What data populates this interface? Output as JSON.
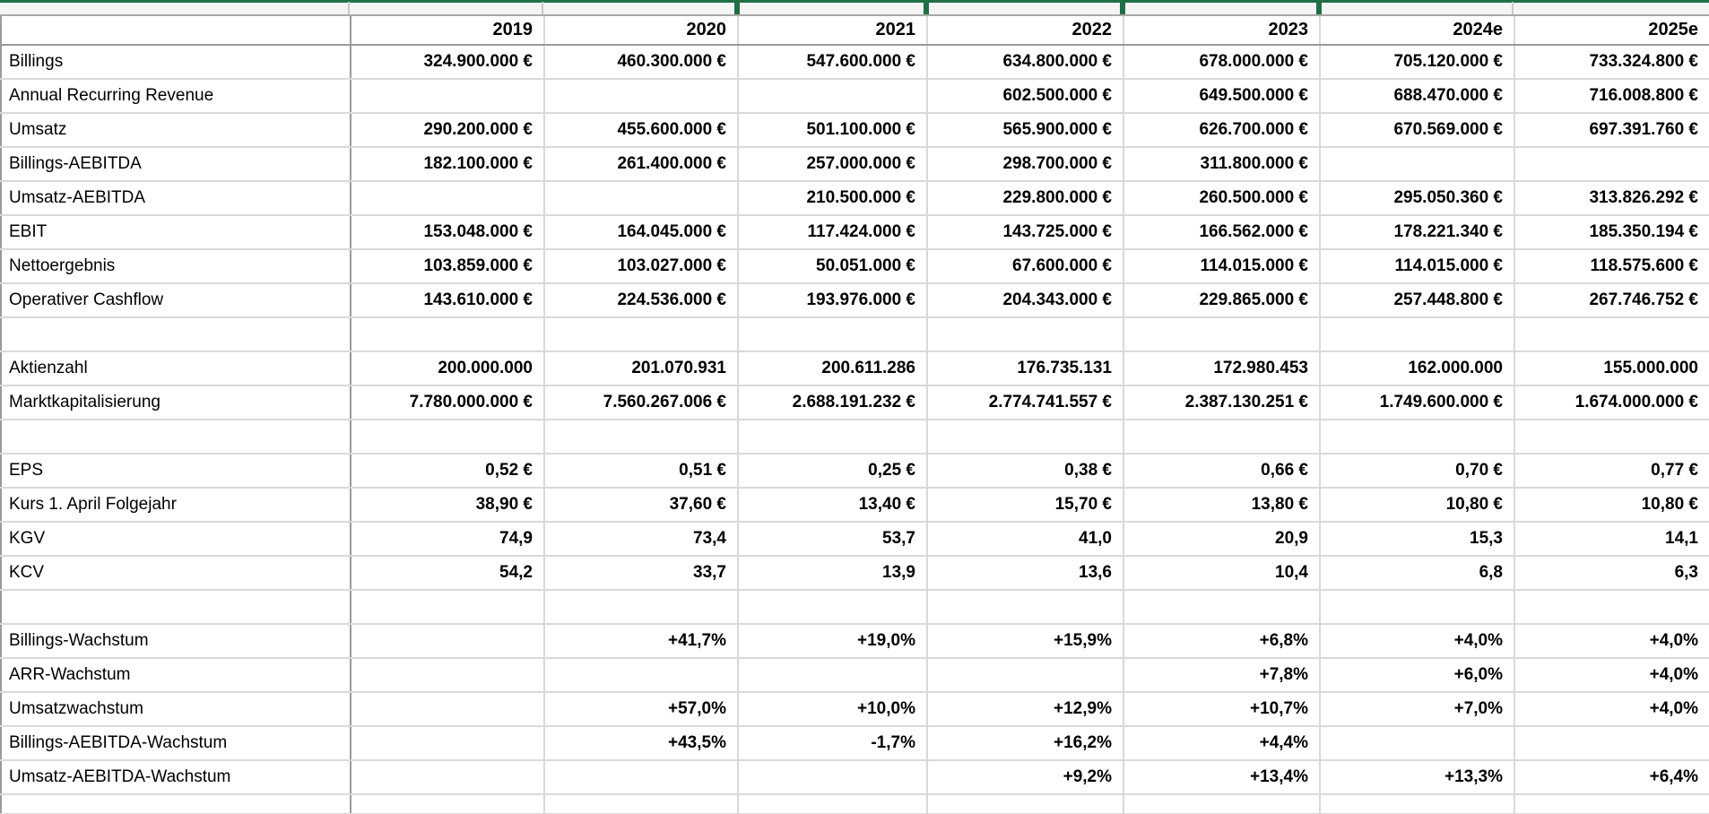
{
  "colors": {
    "accent_green": "#1f7044",
    "strip_background": "#f4f4f4",
    "gridline": "#d9d9d9",
    "strong_gridline": "#9a9a9a"
  },
  "table": {
    "columns": [
      "",
      "2019",
      "2020",
      "2021",
      "2022",
      "2023",
      "2024e",
      "2025e"
    ],
    "rows": [
      {
        "label": "Billings",
        "values": [
          "324.900.000 €",
          "460.300.000 €",
          "547.600.000 €",
          "634.800.000 €",
          "678.000.000 €",
          "705.120.000 €",
          "733.324.800 €"
        ]
      },
      {
        "label": "Annual Recurring Revenue",
        "values": [
          "",
          "",
          "",
          "602.500.000 €",
          "649.500.000 €",
          "688.470.000 €",
          "716.008.800 €"
        ]
      },
      {
        "label": "Umsatz",
        "values": [
          "290.200.000 €",
          "455.600.000 €",
          "501.100.000 €",
          "565.900.000 €",
          "626.700.000 €",
          "670.569.000 €",
          "697.391.760 €"
        ]
      },
      {
        "label": "Billings-AEBITDA",
        "values": [
          "182.100.000 €",
          "261.400.000 €",
          "257.000.000 €",
          "298.700.000 €",
          "311.800.000 €",
          "",
          ""
        ]
      },
      {
        "label": "Umsatz-AEBITDA",
        "values": [
          "",
          "",
          "210.500.000 €",
          "229.800.000 €",
          "260.500.000 €",
          "295.050.360 €",
          "313.826.292 €"
        ]
      },
      {
        "label": "EBIT",
        "values": [
          "153.048.000 €",
          "164.045.000 €",
          "117.424.000 €",
          "143.725.000 €",
          "166.562.000 €",
          "178.221.340 €",
          "185.350.194 €"
        ]
      },
      {
        "label": "Nettoergebnis",
        "values": [
          "103.859.000 €",
          "103.027.000 €",
          "50.051.000 €",
          "67.600.000 €",
          "114.015.000 €",
          "114.015.000 €",
          "118.575.600 €"
        ]
      },
      {
        "label": "Operativer Cashflow",
        "values": [
          "143.610.000 €",
          "224.536.000 €",
          "193.976.000 €",
          "204.343.000 €",
          "229.865.000 €",
          "257.448.800 €",
          "267.746.752 €"
        ]
      },
      {
        "label": "",
        "spacer": true,
        "values": [
          "",
          "",
          "",
          "",
          "",
          "",
          ""
        ]
      },
      {
        "label": "Aktienzahl",
        "values": [
          "200.000.000",
          "201.070.931",
          "200.611.286",
          "176.735.131",
          "172.980.453",
          "162.000.000",
          "155.000.000"
        ]
      },
      {
        "label": "Marktkapitalisierung",
        "values": [
          "7.780.000.000 €",
          "7.560.267.006 €",
          "2.688.191.232 €",
          "2.774.741.557 €",
          "2.387.130.251 €",
          "1.749.600.000 €",
          "1.674.000.000 €"
        ]
      },
      {
        "label": "",
        "spacer": true,
        "values": [
          "",
          "",
          "",
          "",
          "",
          "",
          ""
        ]
      },
      {
        "label": "EPS",
        "values": [
          "0,52 €",
          "0,51 €",
          "0,25 €",
          "0,38 €",
          "0,66 €",
          "0,70 €",
          "0,77 €"
        ]
      },
      {
        "label": "Kurs 1. April Folgejahr",
        "values": [
          "38,90 €",
          "37,60 €",
          "13,40 €",
          "15,70 €",
          "13,80 €",
          "10,80 €",
          "10,80 €"
        ]
      },
      {
        "label": "KGV",
        "values": [
          "74,9",
          "73,4",
          "53,7",
          "41,0",
          "20,9",
          "15,3",
          "14,1"
        ]
      },
      {
        "label": "KCV",
        "values": [
          "54,2",
          "33,7",
          "13,9",
          "13,6",
          "10,4",
          "6,8",
          "6,3"
        ]
      },
      {
        "label": "",
        "spacer": true,
        "values": [
          "",
          "",
          "",
          "",
          "",
          "",
          ""
        ]
      },
      {
        "label": "Billings-Wachstum",
        "values": [
          "",
          "+41,7%",
          "+19,0%",
          "+15,9%",
          "+6,8%",
          "+4,0%",
          "+4,0%"
        ]
      },
      {
        "label": "ARR-Wachstum",
        "values": [
          "",
          "",
          "",
          "",
          "+7,8%",
          "+6,0%",
          "+4,0%"
        ]
      },
      {
        "label": "Umsatzwachstum",
        "values": [
          "",
          "+57,0%",
          "+10,0%",
          "+12,9%",
          "+10,7%",
          "+7,0%",
          "+4,0%"
        ]
      },
      {
        "label": "Billings-AEBITDA-Wachstum",
        "values": [
          "",
          "+43,5%",
          "-1,7%",
          "+16,2%",
          "+4,4%",
          "",
          ""
        ]
      },
      {
        "label": "Umsatz-AEBITDA-Wachstum",
        "values": [
          "",
          "",
          "",
          "+9,2%",
          "+13,4%",
          "+13,3%",
          "+6,4%"
        ]
      },
      {
        "label": "",
        "spacer": true,
        "partial": true,
        "values": [
          "",
          "",
          "",
          "",
          "",
          "",
          ""
        ]
      }
    ]
  }
}
